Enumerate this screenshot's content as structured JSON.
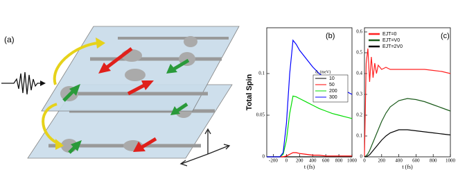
{
  "figure": {
    "panel_a_label": "(a)"
  },
  "chart_data": [
    {
      "type": "line",
      "label": "(b)",
      "y_label": "Total Spin",
      "x_label": "t (fs)",
      "legend_title": "d₀ (meV)",
      "x": [
        -300,
        -200,
        -100,
        -50,
        0,
        50,
        100,
        150,
        200,
        300,
        400,
        500,
        600,
        700,
        800,
        900,
        1000
      ],
      "series": [
        {
          "name": "10",
          "color": "#000000",
          "values": [
            0,
            0,
            0,
            0,
            0,
            0,
            0,
            0,
            0,
            0,
            0,
            0,
            0,
            0,
            0,
            0,
            0
          ]
        },
        {
          "name": "50",
          "color": "#ff0000",
          "values": [
            0,
            0,
            0,
            0,
            0.001,
            0.003,
            0.005,
            0.005,
            0.004,
            0.003,
            0.002,
            0.002,
            0.001,
            0.001,
            0.001,
            0.001,
            0.001
          ]
        },
        {
          "name": "200",
          "color": "#00dd00",
          "values": [
            0,
            0,
            0,
            0.003,
            0.02,
            0.052,
            0.073,
            0.072,
            0.07,
            0.066,
            0.062,
            0.058,
            0.055,
            0.052,
            0.05,
            0.048,
            0.046
          ]
        },
        {
          "name": "300",
          "color": "#0000ff",
          "values": [
            0,
            0,
            0,
            0.005,
            0.04,
            0.1,
            0.14,
            0.135,
            0.128,
            0.118,
            0.108,
            0.1,
            0.094,
            0.088,
            0.083,
            0.079,
            0.075
          ]
        }
      ],
      "xlim": [
        -300,
        1000
      ],
      "xticks": [
        -200,
        0,
        200,
        400,
        600,
        800,
        1000
      ],
      "ylim": [
        0,
        0.155
      ],
      "yticks": [
        0,
        0.05,
        0.1
      ],
      "legend": "right"
    },
    {
      "type": "line",
      "label": "(c)",
      "x_label": "t (fs)",
      "x": [
        0,
        20,
        40,
        60,
        80,
        100,
        120,
        140,
        160,
        200,
        250,
        300,
        400,
        500,
        600,
        700,
        800,
        900,
        1000
      ],
      "series": [
        {
          "name": "EJT=0",
          "color": "#ff2020",
          "values": [
            0,
            0.45,
            0.52,
            0.36,
            0.48,
            0.38,
            0.45,
            0.4,
            0.44,
            0.42,
            0.43,
            0.42,
            0.42,
            0.42,
            0.42,
            0.42,
            0.415,
            0.41,
            0.4
          ]
        },
        {
          "name": "EJT=V0",
          "color": "#1a5a1a",
          "values": [
            0,
            0.005,
            0.015,
            0.03,
            0.05,
            0.07,
            0.09,
            0.11,
            0.13,
            0.17,
            0.21,
            0.24,
            0.27,
            0.28,
            0.275,
            0.265,
            0.25,
            0.235,
            0.22
          ]
        },
        {
          "name": "EJT=2V0",
          "color": "#000000",
          "values": [
            0,
            0,
            0.005,
            0.01,
            0.02,
            0.03,
            0.04,
            0.05,
            0.06,
            0.08,
            0.1,
            0.115,
            0.13,
            0.13,
            0.125,
            0.12,
            0.115,
            0.11,
            0.105
          ]
        }
      ],
      "xlim": [
        0,
        1000
      ],
      "xticks": [
        0,
        200,
        400,
        600,
        800,
        1000
      ],
      "ylim": [
        0,
        0.62
      ],
      "yticks": [
        0,
        0.1,
        0.2,
        0.3,
        0.4,
        0.5,
        0.6
      ],
      "legend": "upper left"
    }
  ]
}
